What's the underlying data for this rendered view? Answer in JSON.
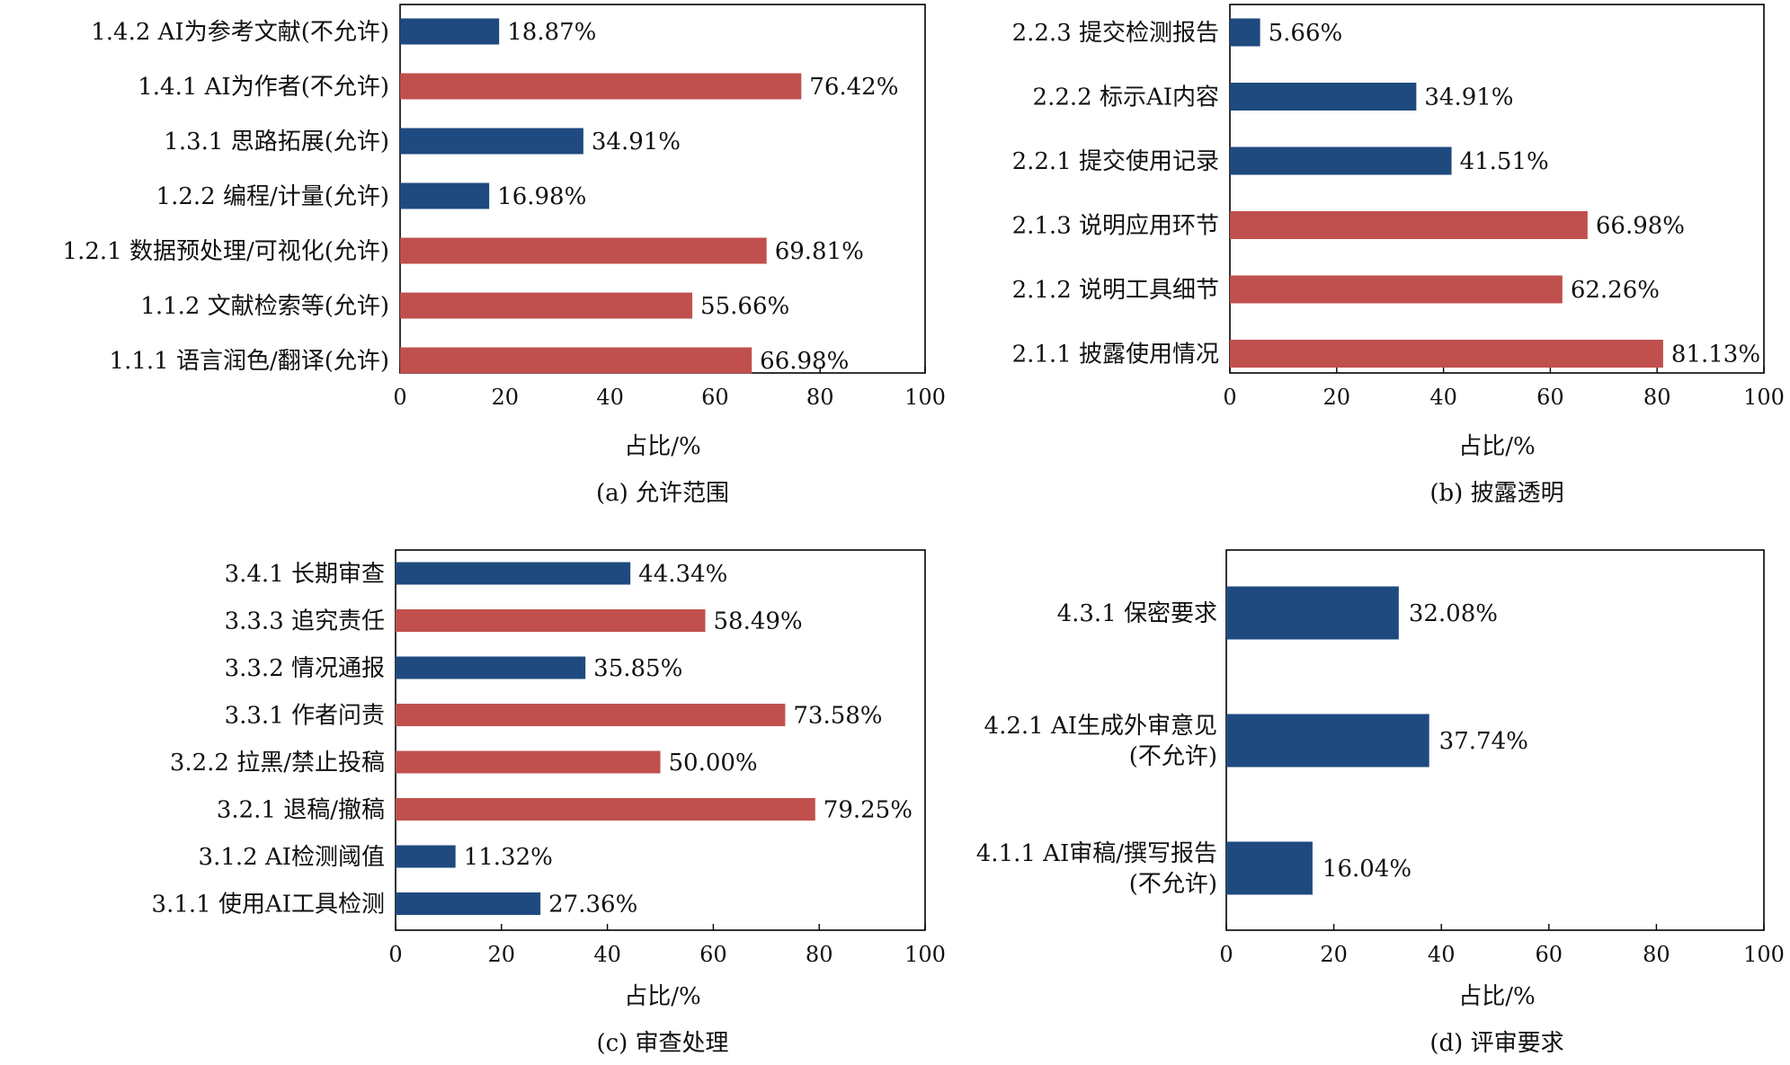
{
  "axis_label": "占比/%",
  "colors": {
    "blue": "#1f4a7f",
    "red": "#c0504d"
  },
  "chart_data": [
    {
      "id": "a",
      "type": "bar",
      "orientation": "horizontal",
      "caption": "(a) 允许范围",
      "xlabel": "占比/%",
      "xlim": [
        0,
        100
      ],
      "xticks": [
        0,
        20,
        40,
        60,
        80,
        100
      ],
      "categories": [
        "1.4.2 AI为参考文献(不允许)",
        "1.4.1 AI为作者(不允许)",
        "1.3.1 思路拓展(允许)",
        "1.2.2 编程/计量(允许)",
        "1.2.1 数据预处理/可视化(允许)",
        "1.1.2 文献检索等(允许)",
        "1.1.1 语言润色/翻译(允许)"
      ],
      "values": [
        18.87,
        76.42,
        34.91,
        16.98,
        69.81,
        55.66,
        66.98
      ],
      "labels": [
        "18.87%",
        "76.42%",
        "34.91%",
        "16.98%",
        "69.81%",
        "55.66%",
        "66.98%"
      ],
      "colors": [
        "blue",
        "red",
        "blue",
        "blue",
        "red",
        "red",
        "red"
      ]
    },
    {
      "id": "b",
      "type": "bar",
      "orientation": "horizontal",
      "caption": "(b) 披露透明",
      "xlabel": "占比/%",
      "xlim": [
        0,
        100
      ],
      "xticks": [
        0,
        20,
        40,
        60,
        80,
        100
      ],
      "categories": [
        "2.2.3 提交检测报告",
        "2.2.2 标示AI内容",
        "2.2.1 提交使用记录",
        "2.1.3 说明应用环节",
        "2.1.2 说明工具细节",
        "2.1.1 披露使用情况"
      ],
      "values": [
        5.66,
        34.91,
        41.51,
        66.98,
        62.26,
        81.13
      ],
      "labels": [
        "5.66%",
        "34.91%",
        "41.51%",
        "66.98%",
        "62.26%",
        "81.13%"
      ],
      "colors": [
        "blue",
        "blue",
        "blue",
        "red",
        "red",
        "red"
      ]
    },
    {
      "id": "c",
      "type": "bar",
      "orientation": "horizontal",
      "caption": "(c) 审查处理",
      "xlabel": "占比/%",
      "xlim": [
        0,
        100
      ],
      "xticks": [
        0,
        20,
        40,
        60,
        80,
        100
      ],
      "categories": [
        "3.4.1 长期审查",
        "3.3.3 追究责任",
        "3.3.2 情况通报",
        "3.3.1 作者问责",
        "3.2.2 拉黑/禁止投稿",
        "3.2.1 退稿/撤稿",
        "3.1.2 AI检测阈值",
        "3.1.1 使用AI工具检测"
      ],
      "values": [
        44.34,
        58.49,
        35.85,
        73.58,
        50.0,
        79.25,
        11.32,
        27.36
      ],
      "labels": [
        "44.34%",
        "58.49%",
        "35.85%",
        "73.58%",
        "50.00%",
        "79.25%",
        "11.32%",
        "27.36%"
      ],
      "colors": [
        "blue",
        "red",
        "blue",
        "red",
        "red",
        "red",
        "blue",
        "blue"
      ]
    },
    {
      "id": "d",
      "type": "bar",
      "orientation": "horizontal",
      "caption": "(d) 评审要求",
      "xlabel": "占比/%",
      "xlim": [
        0,
        100
      ],
      "xticks": [
        0,
        20,
        40,
        60,
        80,
        100
      ],
      "categories": [
        [
          "4.3.1 保密要求"
        ],
        [
          "4.2.1 AI生成外审意见",
          "(不允许)"
        ],
        [
          "4.1.1 AI审稿/撰写报告",
          "(不允许)"
        ]
      ],
      "values": [
        32.08,
        37.74,
        16.04
      ],
      "labels": [
        "32.08%",
        "37.74%",
        "16.04%"
      ],
      "colors": [
        "blue",
        "blue",
        "blue"
      ]
    }
  ]
}
